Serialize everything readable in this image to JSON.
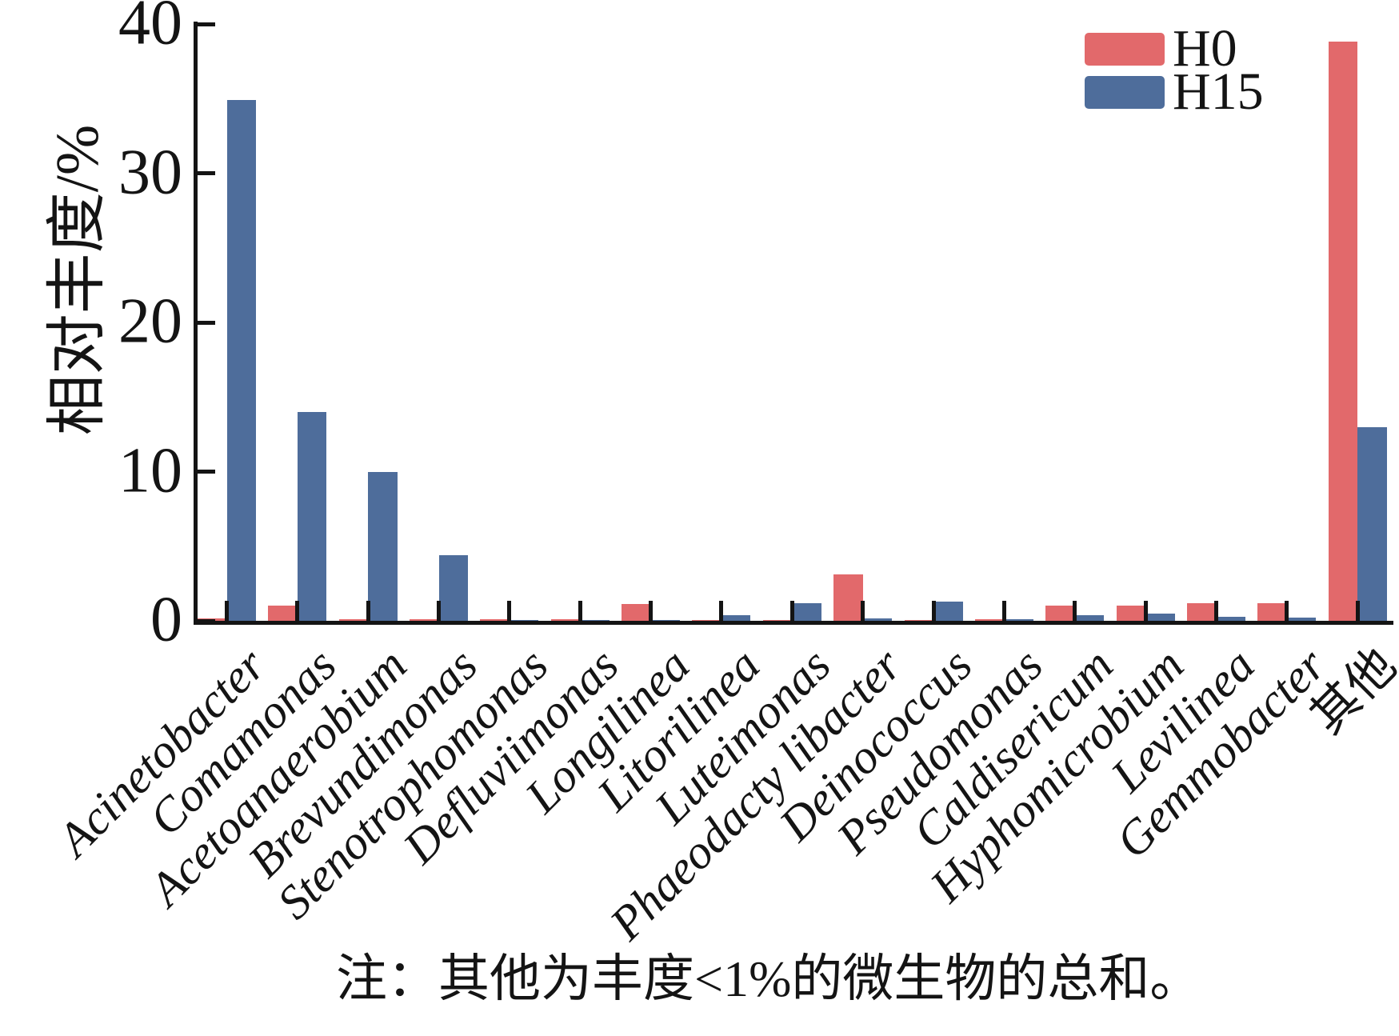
{
  "chart_data": {
    "type": "bar",
    "title": "",
    "ylabel": "相对丰度/%",
    "xlabel": "",
    "ylim": [
      0,
      40
    ],
    "yticks": [
      0,
      10,
      20,
      30,
      40
    ],
    "grid": false,
    "legend_position": "top-right",
    "categories": [
      "Acinetobacter",
      "Comamonas",
      "Acetoanaerobium",
      "Brevundimonas",
      "Stenotrophomonas",
      "Defluviimonas",
      "Longilinea",
      "Litorilinea",
      "Luteimonas",
      "Phaeodacty libacter",
      "Deinococcus",
      "Pseudomonas",
      "Caldisericum",
      "Hyphomicrobium",
      "Levilinea",
      "Gemmobacter",
      "其他"
    ],
    "series": [
      {
        "name": "H0",
        "color": "#e2696b",
        "values": [
          0.15,
          1.0,
          0.1,
          0.1,
          0.1,
          0.1,
          1.1,
          0.05,
          0.05,
          3.1,
          0.05,
          0.1,
          1.0,
          1.0,
          1.2,
          1.2,
          38.8
        ]
      },
      {
        "name": "H15",
        "color": "#4e6d9b",
        "values": [
          34.9,
          14.0,
          10.0,
          4.4,
          0.05,
          0.05,
          0.05,
          0.4,
          1.2,
          0.15,
          1.3,
          0.1,
          0.4,
          0.5,
          0.25,
          0.2,
          13.0
        ]
      }
    ],
    "note": "注：其他为丰度<1%的微生物的总和。"
  }
}
